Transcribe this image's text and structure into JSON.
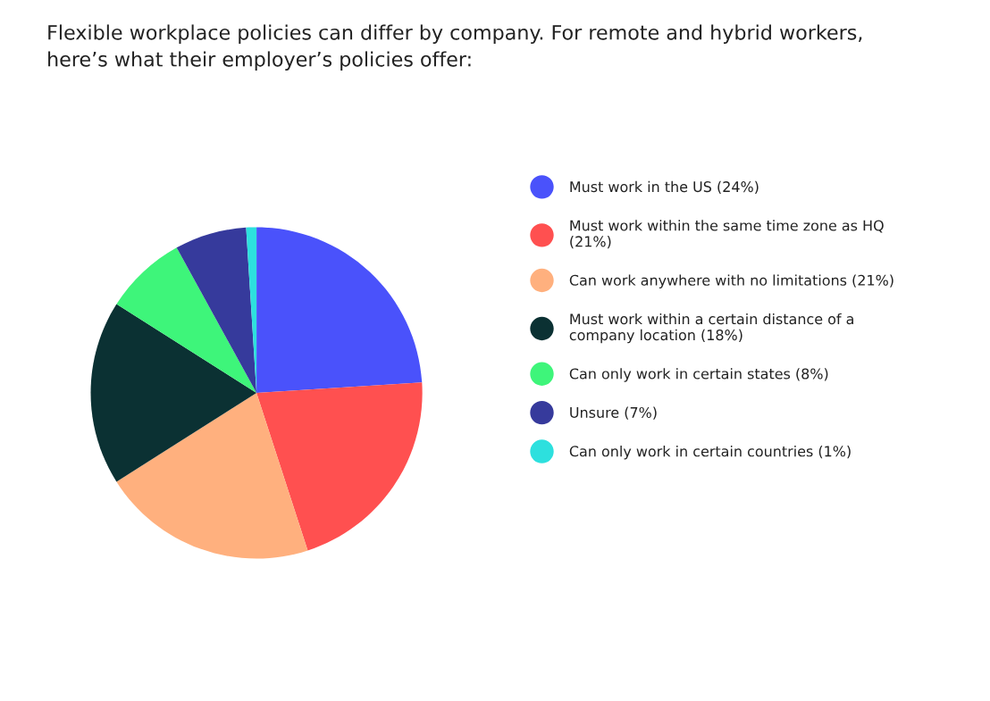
{
  "chart_data": {
    "type": "pie",
    "title": "Flexible workplace policies can differ by company. For remote and hybrid workers,\nhere’s what their employer’s policies offer:",
    "categories": [
      "Must work in the US (24%)",
      "Must work within the same time zone as HQ\n(21%)",
      "Can work anywhere with no limitations (21%)",
      "Must work within a certain distance of a\ncompany location (18%)",
      "Can only work in certain states (8%)",
      "Unsure (7%)",
      "Can only work in certain countries (1%)"
    ],
    "values": [
      24,
      21,
      21,
      18,
      8,
      7,
      1
    ],
    "colors": [
      "#4a52fb",
      "#ff5050",
      "#ffb07e",
      "#0b3133",
      "#3ef57a",
      "#363a9c",
      "#2de0de"
    ],
    "legend": "right"
  }
}
